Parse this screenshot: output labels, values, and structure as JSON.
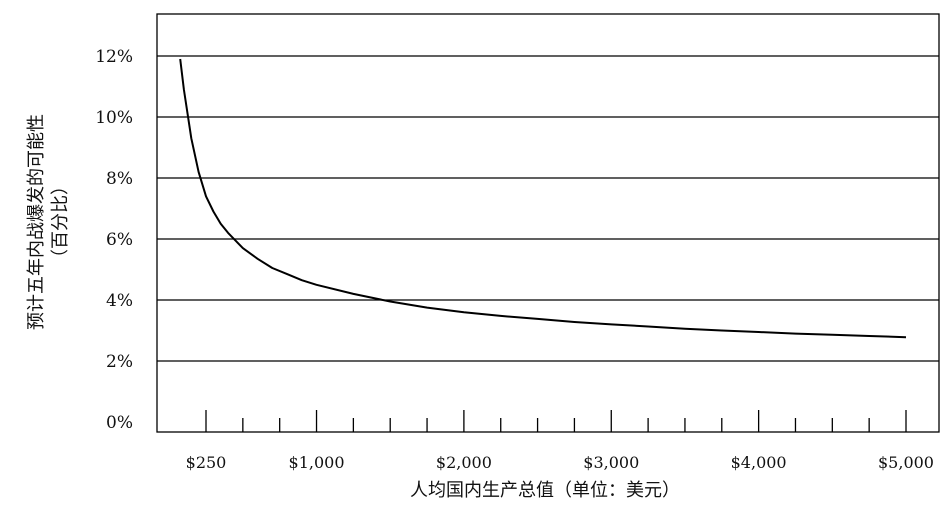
{
  "chart_data": {
    "type": "line",
    "title": "",
    "xlabel": "人均国内生产总值（单位：美元）",
    "ylabel_line1": "预计五年内战爆发的可能性",
    "ylabel_line2": "（百分比）",
    "x_ticks": [
      {
        "value": 250,
        "label": "$250"
      },
      {
        "value": 1000,
        "label": "$1,000"
      },
      {
        "value": 2000,
        "label": "$2,000"
      },
      {
        "value": 3000,
        "label": "$3,000"
      },
      {
        "value": 4000,
        "label": "$4,000"
      },
      {
        "value": 5000,
        "label": "$5,000"
      }
    ],
    "y_ticks": [
      {
        "value": 0,
        "label": "0%"
      },
      {
        "value": 2,
        "label": "2%"
      },
      {
        "value": 4,
        "label": "4%"
      },
      {
        "value": 6,
        "label": "6%"
      },
      {
        "value": 8,
        "label": "8%"
      },
      {
        "value": 10,
        "label": "10%"
      },
      {
        "value": 12,
        "label": "12%"
      }
    ],
    "xlim": [
      0,
      5200
    ],
    "ylim": [
      0,
      14
    ],
    "grid": "horizontal",
    "series": [
      {
        "color": "#000000",
        "x": [
          75,
          100,
          150,
          200,
          250,
          300,
          350,
          400,
          500,
          600,
          700,
          800,
          900,
          1000,
          1250,
          1500,
          1750,
          2000,
          2250,
          2500,
          2750,
          3000,
          3250,
          3500,
          3750,
          4000,
          4250,
          4500,
          4750,
          5000
        ],
        "y": [
          11.9,
          10.9,
          9.3,
          8.2,
          7.4,
          6.9,
          6.5,
          6.2,
          5.7,
          5.35,
          5.05,
          4.85,
          4.65,
          4.5,
          4.2,
          3.95,
          3.75,
          3.6,
          3.48,
          3.38,
          3.28,
          3.2,
          3.13,
          3.06,
          3.0,
          2.95,
          2.9,
          2.86,
          2.82,
          2.78
        ]
      }
    ]
  }
}
